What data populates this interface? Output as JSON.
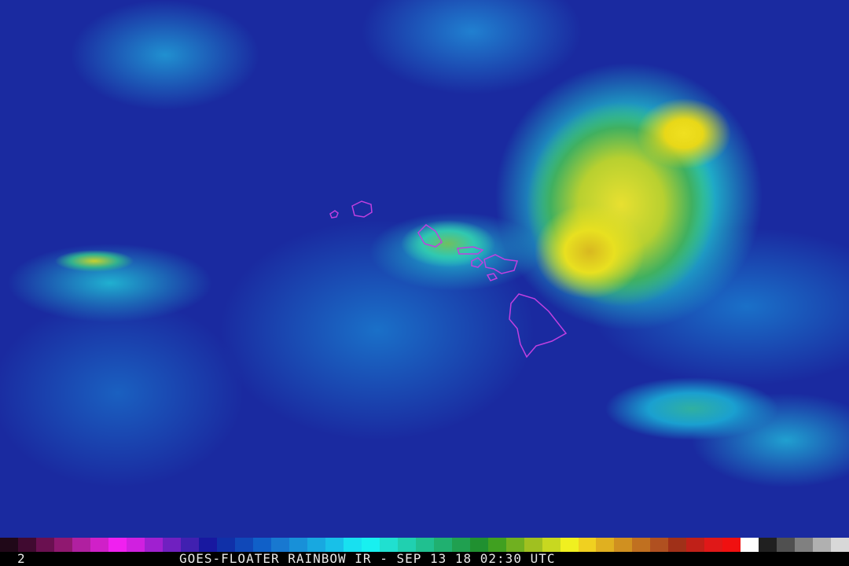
{
  "caption": {
    "frame_number": "2",
    "title": "GOES-FLOATER RAINBOW IR - SEP 13 18 02:30 UTC"
  },
  "colors": {
    "coastline": "#c040e0",
    "ocean_clear": "#1a2aa0",
    "colorbar": [
      "#200818",
      "#400a30",
      "#6a1050",
      "#901870",
      "#b020a0",
      "#d020c8",
      "#f020f0",
      "#d020e0",
      "#a020d0",
      "#7020c0",
      "#4020b0",
      "#1818a0",
      "#1030a8",
      "#1048b8",
      "#1060c8",
      "#1878d0",
      "#1890d8",
      "#18a8e0",
      "#18c0e8",
      "#18e0f0",
      "#18f0f0",
      "#20e0d0",
      "#20d0b0",
      "#20c090",
      "#20b070",
      "#20a050",
      "#209030",
      "#40a020",
      "#70b020",
      "#a0c020",
      "#c8d820",
      "#f0f020",
      "#f0d020",
      "#e0b020",
      "#d09020",
      "#c07020",
      "#b05020",
      "#a03018",
      "#c02018",
      "#e01818",
      "#f01010",
      "#ffffff",
      "#202020",
      "#505050",
      "#808080",
      "#b0b0b0",
      "#d8d8d8"
    ]
  }
}
